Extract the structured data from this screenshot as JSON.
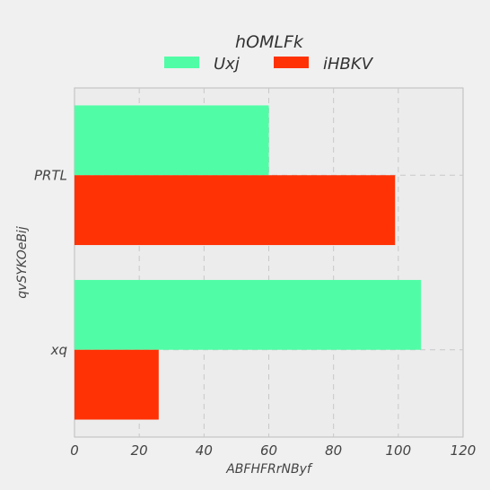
{
  "chart_data": {
    "type": "bar",
    "orientation": "horizontal",
    "categories": [
      "PRTL",
      "xq"
    ],
    "series": [
      {
        "name": "Uxj",
        "values": [
          60,
          107
        ],
        "color": "#50fda6"
      },
      {
        "name": "iHBKV",
        "values": [
          99,
          26
        ],
        "color": "#ff3205"
      }
    ],
    "legend_title": "hOMLFk",
    "legend_placement": "top-center",
    "xlabel": "ABFHFRrNByf",
    "ylabel": "qvSYKOeBij",
    "xlim": [
      0,
      120
    ],
    "xticks": [
      0,
      20,
      40,
      60,
      80,
      100,
      120
    ],
    "grid": true,
    "plot_background": "#ececec",
    "page_background": "#f0f0f0"
  }
}
